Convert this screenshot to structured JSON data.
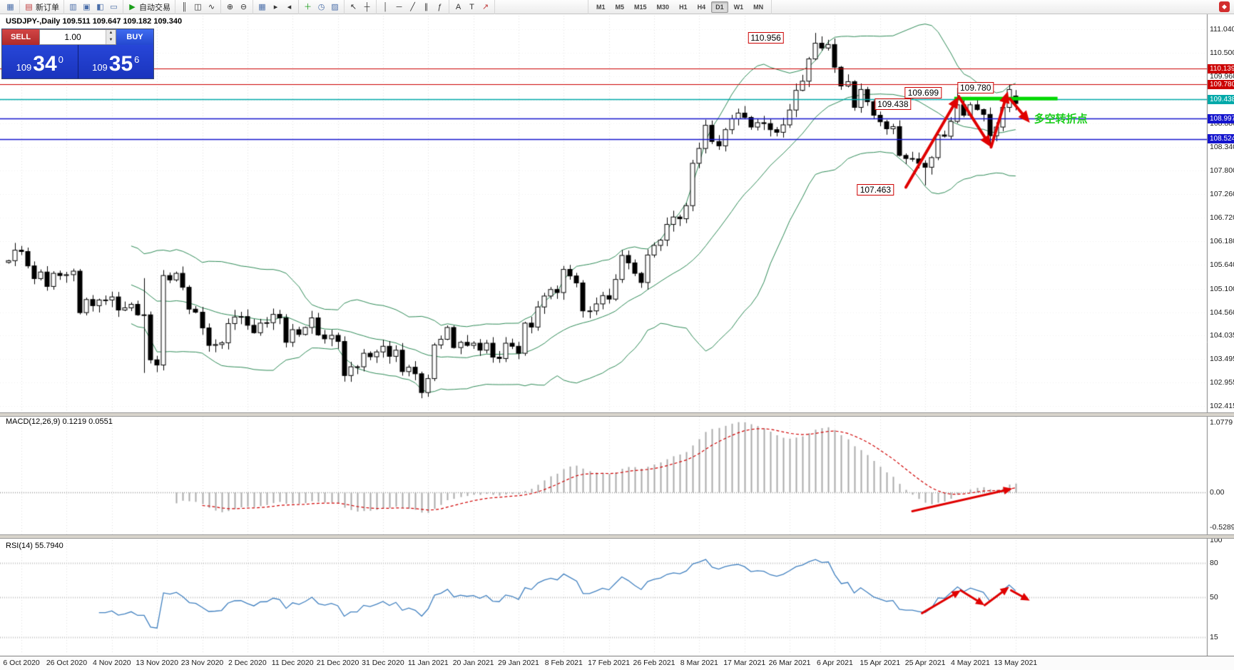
{
  "window": {
    "symbol_header": "USDJPY-,Daily  109.511 109.647 109.182 109.340"
  },
  "toolbar": {
    "groups": [
      {
        "items": [
          {
            "name": "chart-window-icon",
            "glyph": "▦",
            "color": "#4a6ea9"
          }
        ]
      },
      {
        "items": [
          {
            "name": "new-order-button",
            "glyph": "▤",
            "color": "#c03a3a",
            "label": "新订单"
          }
        ]
      },
      {
        "items": [
          {
            "name": "market-watch-icon",
            "glyph": "▥",
            "color": "#4a6ea9"
          },
          {
            "name": "data-window-icon",
            "glyph": "▣",
            "color": "#4a6ea9"
          },
          {
            "name": "navigator-icon",
            "glyph": "◧",
            "color": "#4a6ea9"
          },
          {
            "name": "terminal-icon",
            "glyph": "▭",
            "color": "#4a6ea9"
          }
        ]
      },
      {
        "items": [
          {
            "name": "autotrading-button",
            "glyph": "▶",
            "color": "#1a9e1a",
            "label": "自动交易"
          }
        ]
      },
      {
        "items": [
          {
            "name": "bars-chart-icon",
            "glyph": "║",
            "color": "#333333"
          },
          {
            "name": "candlestick-chart-icon",
            "glyph": "◫",
            "color": "#333333"
          },
          {
            "name": "line-chart-icon",
            "glyph": "∿",
            "color": "#333333"
          }
        ]
      },
      {
        "items": [
          {
            "name": "zoom-in-icon",
            "glyph": "⊕",
            "color": "#333333"
          },
          {
            "name": "zoom-out-icon",
            "glyph": "⊖",
            "color": "#333333"
          }
        ]
      },
      {
        "items": [
          {
            "name": "tile-windows-icon",
            "glyph": "▦",
            "color": "#4a6ea9"
          },
          {
            "name": "auto-scroll-icon",
            "glyph": "▸",
            "color": "#333333"
          },
          {
            "name": "chart-shift-icon",
            "glyph": "◂",
            "color": "#333333"
          }
        ]
      },
      {
        "items": [
          {
            "name": "indicators-add-icon",
            "glyph": "＋",
            "color": "#1a9e1a"
          },
          {
            "name": "periods-icon",
            "glyph": "◷",
            "color": "#4a6ea9"
          },
          {
            "name": "templates-icon",
            "glyph": "▨",
            "color": "#4a6ea9"
          }
        ]
      },
      {
        "items": [
          {
            "name": "cursor-icon",
            "glyph": "↖",
            "color": "#333333"
          },
          {
            "name": "crosshair-icon",
            "glyph": "┼",
            "color": "#333333"
          }
        ]
      },
      {
        "items": [
          {
            "name": "vertical-line-icon",
            "glyph": "│",
            "color": "#333333"
          },
          {
            "name": "horizontal-line-icon",
            "glyph": "─",
            "color": "#333333"
          },
          {
            "name": "trendline-icon",
            "glyph": "╱",
            "color": "#333333"
          },
          {
            "name": "channel-icon",
            "glyph": "∥",
            "color": "#333333"
          },
          {
            "name": "fibonacci-icon",
            "glyph": "ƒ",
            "color": "#333333"
          }
        ]
      },
      {
        "items": [
          {
            "name": "text-icon",
            "glyph": "A",
            "color": "#333333"
          },
          {
            "name": "text-label-icon",
            "glyph": "T",
            "color": "#333333"
          },
          {
            "name": "arrows-tool-icon",
            "glyph": "↗",
            "color": "#c03a3a"
          }
        ]
      }
    ],
    "timeframes": [
      {
        "label": "M1"
      },
      {
        "label": "M5"
      },
      {
        "label": "M15"
      },
      {
        "label": "M30"
      },
      {
        "label": "H1"
      },
      {
        "label": "H4"
      },
      {
        "label": "D1",
        "active": true
      },
      {
        "label": "W1"
      },
      {
        "label": "MN"
      }
    ],
    "app_icon_glyph": "◆"
  },
  "one_click": {
    "sell_label": "SELL",
    "buy_label": "BUY",
    "volume": "1.00",
    "bid_prefix": "109",
    "bid_big": "34",
    "bid_sup": "0",
    "ask_prefix": "109",
    "ask_big": "35",
    "ask_sup": "6"
  },
  "main_chart": {
    "axis_labels": [
      "111.040",
      "110.500",
      "109.960",
      "109.420",
      "108.880",
      "108.340",
      "107.800",
      "107.260",
      "106.720",
      "106.180",
      "105.640",
      "105.100",
      "104.560",
      "104.035",
      "103.495",
      "102.955",
      "102.415"
    ],
    "hlines": [
      {
        "price": 110.139,
        "text": "110.139",
        "color": "#CC0000",
        "width": 1.2
      },
      {
        "price": 109.78,
        "text": "109.780",
        "color": "#CC0000",
        "width": 1.2
      },
      {
        "price": 109.438,
        "text": "109.438",
        "color": "#00A9A9",
        "width": 1.5
      },
      {
        "price": 108.997,
        "text": "108.997",
        "color": "#1414CD",
        "width": 1.6
      },
      {
        "price": 108.524,
        "text": "108.524",
        "color": "#1414CD",
        "width": 1.6
      }
    ],
    "green_bar": {
      "price": 109.452,
      "bar_from": 146.5,
      "bar_to": 162.5,
      "color": "#00D800",
      "thickness": 5
    },
    "callouts": [
      {
        "text": "110.956",
        "bar": 117.3,
        "price": 110.85
      },
      {
        "text": "109.699",
        "bar": 141.7,
        "price": 109.58
      },
      {
        "text": "109.780",
        "bar": 149.8,
        "price": 109.7
      },
      {
        "text": "109.438",
        "bar": 137.0,
        "price": 109.33
      },
      {
        "text": "107.463",
        "bar": 134.3,
        "price": 107.37
      }
    ],
    "note": {
      "text": "多空转折点",
      "bar": 163,
      "price": 108.99,
      "color": "#19CD19"
    },
    "arrows": [
      [
        139,
        107.42,
        147.2,
        109.5
      ],
      [
        147.2,
        109.5,
        152.2,
        108.34
      ],
      [
        152.2,
        108.34,
        154.8,
        109.62
      ],
      [
        155.1,
        109.45,
        158.2,
        108.9
      ]
    ],
    "arrow_color": "#E00000",
    "bollinger_color": "#2E8B57",
    "candle_up_color": "#FFFFFF",
    "candle_down_color": "#000000"
  },
  "macd": {
    "header": "MACD(12,26,9) 0.1219 0.0551",
    "axis_labels": [
      {
        "text": "1.0779",
        "value": 1.0779
      },
      {
        "text": "0.00",
        "value": 0
      },
      {
        "text": "-0.5289",
        "value": -0.5289
      }
    ],
    "histogram_color": "#ABABAB",
    "signal_color": "#D00000",
    "arrows": [
      [
        140,
        -0.285,
        155.5,
        0.06
      ]
    ]
  },
  "rsi": {
    "header": "RSI(14) 55.7940",
    "axis_labels": [
      {
        "text": "100",
        "value": 100
      },
      {
        "text": "80",
        "value": 80
      },
      {
        "text": "50",
        "value": 50
      },
      {
        "text": "15",
        "value": 15
      }
    ],
    "levels": [
      80,
      50,
      15
    ],
    "line_color": "#4080C0",
    "arrows": [
      [
        141.5,
        36,
        147.5,
        56
      ],
      [
        147.5,
        56,
        151.2,
        43
      ],
      [
        151.2,
        43,
        155,
        59
      ],
      [
        155.3,
        56,
        158.2,
        47
      ]
    ]
  },
  "time_axis": {
    "labels": [
      "6 Oct 2020",
      "26 Oct 2020",
      "4 Nov 2020",
      "13 Nov 2020",
      "23 Nov 2020",
      "2 Dec 2020",
      "11 Dec 2020",
      "21 Dec 2020",
      "31 Dec 2020",
      "11 Jan 2021",
      "20 Jan 2021",
      "29 Jan 2021",
      "8 Feb 2021",
      "17 Feb 2021",
      "26 Feb 2021",
      "8 Mar 2021",
      "17 Mar 2021",
      "26 Mar 2021",
      "6 Apr 2021",
      "15 Apr 2021",
      "25 Apr 2021",
      "4 May 2021",
      "13 May 2021"
    ]
  },
  "chart_data": {
    "type": "candlestick",
    "symbol": "USDJPY-",
    "timeframe": "Daily",
    "first_open": 105.7,
    "closes": [
      105.74,
      105.98,
      105.95,
      105.62,
      105.33,
      105.48,
      105.15,
      105.45,
      105.4,
      105.42,
      105.5,
      104.55,
      104.85,
      104.71,
      104.84,
      104.84,
      104.91,
      104.61,
      104.66,
      104.74,
      104.5,
      104.5,
      103.47,
      103.35,
      105.4,
      105.3,
      105.45,
      105.13,
      104.63,
      104.56,
      104.2,
      103.8,
      103.82,
      103.86,
      104.3,
      104.45,
      104.46,
      104.26,
      104.09,
      104.31,
      104.32,
      104.51,
      104.43,
      103.87,
      104.16,
      104.05,
      104.21,
      104.43,
      104.04,
      103.95,
      104.03,
      103.89,
      103.11,
      103.31,
      103.31,
      103.62,
      103.54,
      103.65,
      103.78,
      103.55,
      103.69,
      103.2,
      103.3,
      103.15,
      102.72,
      103.04,
      103.81,
      103.94,
      104.21,
      103.75,
      103.87,
      103.8,
      103.85,
      103.69,
      103.85,
      103.53,
      103.5,
      103.85,
      103.78,
      103.62,
      104.31,
      104.22,
      104.68,
      104.93,
      105.08,
      105.01,
      105.54,
      105.39,
      105.23,
      104.59,
      104.59,
      104.75,
      104.94,
      104.86,
      105.31,
      105.86,
      105.69,
      105.45,
      105.24,
      105.87,
      106.09,
      106.21,
      106.57,
      106.74,
      106.7,
      107.0,
      107.97,
      108.31,
      108.84,
      108.47,
      108.37,
      108.74,
      108.99,
      109.12,
      109.02,
      108.8,
      108.9,
      108.88,
      108.74,
      108.68,
      108.85,
      109.19,
      109.64,
      109.85,
      110.36,
      110.72,
      110.61,
      110.69,
      110.17,
      109.74,
      109.84,
      109.25,
      109.66,
      109.38,
      109.07,
      108.92,
      108.76,
      108.81,
      108.15,
      108.08,
      108.07,
      107.97,
      107.88,
      108.1,
      108.62,
      108.59,
      108.93,
      109.31,
      109.07,
      109.31,
      109.2,
      109.09,
      108.6,
      108.8,
      109.25,
      109.66,
      109.34
    ],
    "overrides": {
      "21": {
        "h": 105.34,
        "l": 103.17
      },
      "64": {
        "l": 102.59
      },
      "125": {
        "h": 110.956
      },
      "142": {
        "l": 107.463
      },
      "147": {
        "h": 109.699
      },
      "152": {
        "l": 108.34
      },
      "155": {
        "h": 109.78
      },
      "156": {
        "o": 109.511,
        "h": 109.647,
        "l": 109.182,
        "c": 109.34
      }
    },
    "indicators": [
      {
        "name": "Bollinger Bands",
        "period": 20,
        "deviation": 2
      },
      {
        "name": "MACD",
        "fast": 12,
        "slow": 26,
        "signal": 9,
        "last_values": [
          0.1219,
          0.0551
        ]
      },
      {
        "name": "RSI",
        "period": 14,
        "last_value": 55.794
      }
    ],
    "ohlc_current": {
      "open": 109.511,
      "high": 109.647,
      "low": 109.182,
      "close": 109.34
    }
  }
}
